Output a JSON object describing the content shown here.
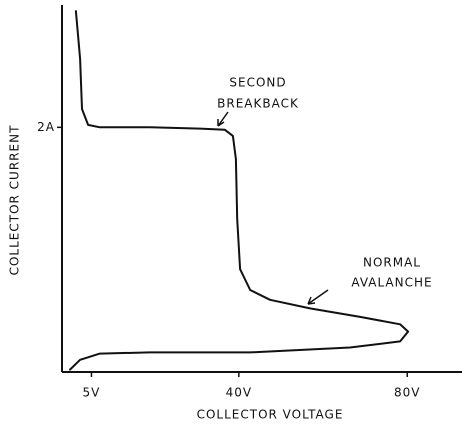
{
  "chart_data": {
    "type": "line",
    "xlabel": "COLLECTOR VOLTAGE",
    "ylabel": "COLLECTOR CURRENT",
    "annotations": [
      [
        "SECOND",
        "BREAKBACK"
      ],
      [
        "NORMAL",
        "AVALANCHE"
      ]
    ],
    "color": "#111111",
    "x": [
      1.3,
      2.3,
      2.75,
      4.2,
      7,
      18.9,
      30.8,
      36.7,
      38.6,
      39.3,
      39.6,
      40.3,
      42.7,
      47.4,
      56.9,
      68.8,
      78.3,
      80.2,
      78.3,
      66.4,
      42.7,
      18.9,
      7,
      2.3,
      -0.1
    ],
    "values": [
      2.95,
      2.56,
      2.15,
      2.02,
      2.0,
      2.0,
      1.99,
      1.98,
      1.93,
      1.74,
      1.25,
      0.84,
      0.67,
      0.59,
      0.52,
      0.45,
      0.39,
      0.33,
      0.25,
      0.2,
      0.16,
      0.16,
      0.15,
      0.1,
      0.02
    ],
    "xlim": [
      -2,
      93
    ],
    "ylim": [
      0,
      3
    ],
    "xticks": [
      {
        "value": 5,
        "label": "5V"
      },
      {
        "value": 40,
        "label": "40V"
      },
      {
        "value": 80,
        "label": "80V"
      }
    ],
    "yticks": [
      {
        "value": 2,
        "label": "2A"
      }
    ]
  }
}
